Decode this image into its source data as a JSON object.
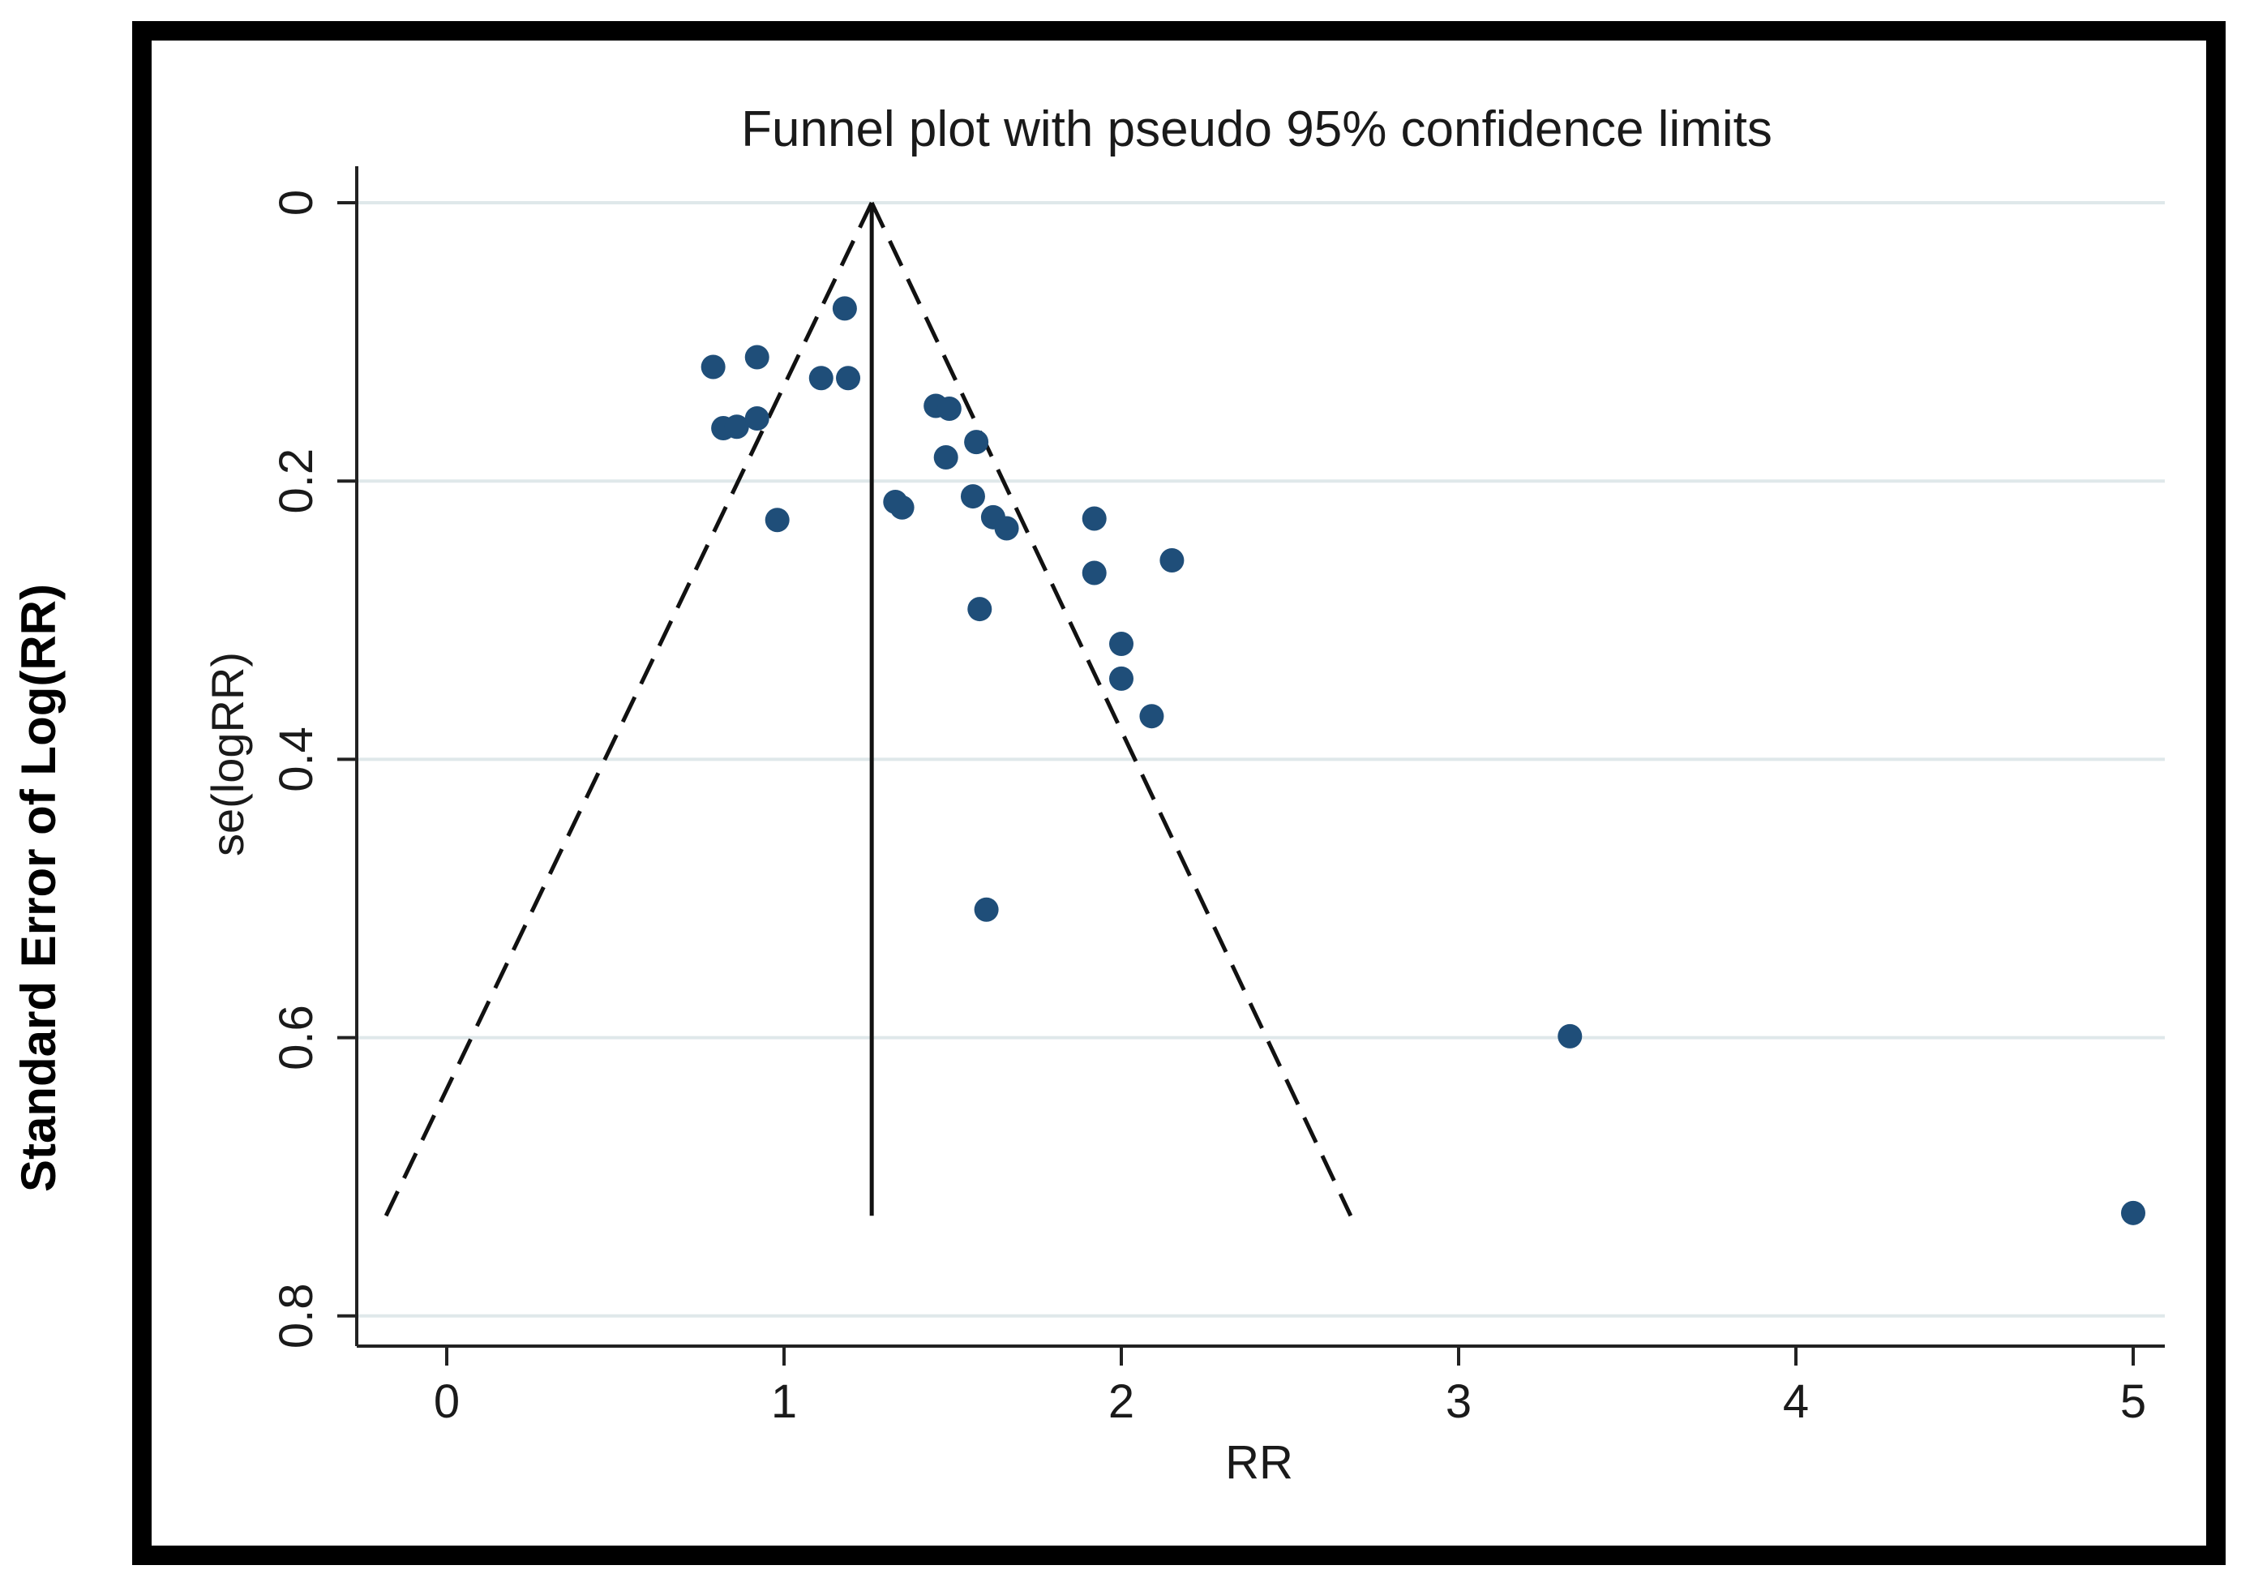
{
  "outer_ylabel": "Standard Error of Log(RR)",
  "chart_data": {
    "type": "scatter",
    "title": "Funnel plot with pseudo 95% confidence limits",
    "xlabel": "RR",
    "ylabel": "se(logRR)",
    "xlim": [
      -0.27,
      5.1
    ],
    "ylim": [
      0,
      0.82
    ],
    "y_inverted": true,
    "xticks": [
      0,
      1,
      2,
      3,
      4,
      5
    ],
    "xtick_labels": [
      "0",
      "1",
      "2",
      "3",
      "4",
      "5"
    ],
    "yticks": [
      0,
      0.2,
      0.4,
      0.6,
      0.8
    ],
    "ytick_labels": [
      "0",
      "0.2",
      "0.4",
      "0.6",
      "0.8"
    ],
    "grid": true,
    "pooled_estimate": 1.26,
    "pooled_line_se_range": [
      0,
      0.728
    ],
    "ci_lower_points": [
      [
        1.26,
        0
      ],
      [
        -0.18,
        0.728
      ]
    ],
    "ci_upper_points": [
      [
        1.26,
        0
      ],
      [
        2.68,
        0.728
      ]
    ],
    "marker_color": "#1f4e79",
    "gridline_color": "#dfe8ea",
    "points": [
      {
        "x": 0.79,
        "y": 0.118
      },
      {
        "x": 0.92,
        "y": 0.111
      },
      {
        "x": 1.18,
        "y": 0.076
      },
      {
        "x": 1.11,
        "y": 0.126
      },
      {
        "x": 1.19,
        "y": 0.126
      },
      {
        "x": 0.82,
        "y": 0.162
      },
      {
        "x": 0.86,
        "y": 0.161
      },
      {
        "x": 0.92,
        "y": 0.155
      },
      {
        "x": 0.98,
        "y": 0.228
      },
      {
        "x": 1.45,
        "y": 0.146
      },
      {
        "x": 1.49,
        "y": 0.148
      },
      {
        "x": 1.57,
        "y": 0.172
      },
      {
        "x": 1.48,
        "y": 0.183
      },
      {
        "x": 1.33,
        "y": 0.215
      },
      {
        "x": 1.35,
        "y": 0.219
      },
      {
        "x": 1.56,
        "y": 0.211
      },
      {
        "x": 1.62,
        "y": 0.226
      },
      {
        "x": 1.66,
        "y": 0.234
      },
      {
        "x": 1.58,
        "y": 0.292
      },
      {
        "x": 1.92,
        "y": 0.227
      },
      {
        "x": 1.92,
        "y": 0.266
      },
      {
        "x": 2.15,
        "y": 0.257
      },
      {
        "x": 2.0,
        "y": 0.317
      },
      {
        "x": 2.0,
        "y": 0.342
      },
      {
        "x": 2.09,
        "y": 0.369
      },
      {
        "x": 1.6,
        "y": 0.508
      },
      {
        "x": 3.33,
        "y": 0.599
      },
      {
        "x": 5.0,
        "y": 0.726
      }
    ]
  }
}
